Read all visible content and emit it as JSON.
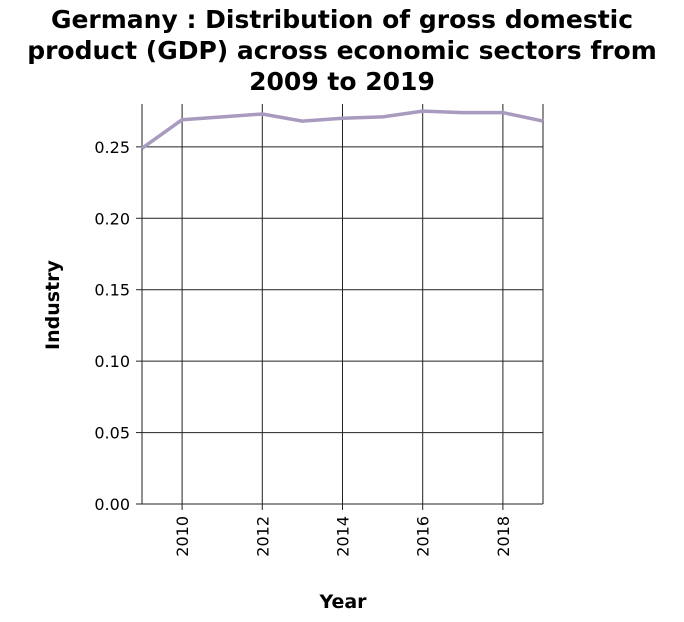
{
  "chart_data": {
    "type": "line",
    "title_lines": [
      "Germany : Distribution of gross domestic",
      "product (GDP) across economic sectors from",
      "2009 to 2019"
    ],
    "xlabel": "Year",
    "ylabel": "Industry",
    "xlim": [
      2009,
      2019
    ],
    "ylim": [
      0,
      0.28
    ],
    "x_ticks": [
      2010,
      2012,
      2014,
      2016,
      2018
    ],
    "y_ticks": [
      "0.00",
      "0.05",
      "0.10",
      "0.15",
      "0.20",
      "0.25"
    ],
    "grid": true,
    "line_color": "#a89bbf",
    "series": [
      {
        "x": [
          2009,
          2010,
          2011,
          2012,
          2013,
          2014,
          2015,
          2016,
          2017,
          2018,
          2019
        ],
        "values": [
          0.249,
          0.269,
          0.271,
          0.273,
          0.268,
          0.27,
          0.271,
          0.275,
          0.274,
          0.274,
          0.268
        ]
      }
    ]
  }
}
